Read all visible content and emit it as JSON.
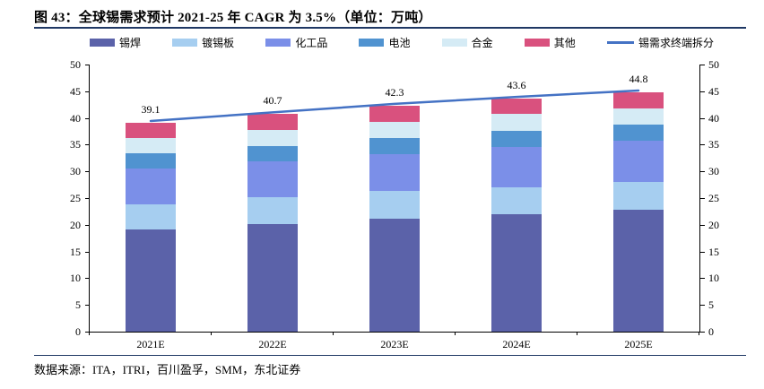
{
  "title": "图 43：全球锡需求预计 2021-25 年 CAGR 为 3.5%（单位：万吨）",
  "source": "数据来源：ITA，ITRI，百川盈孚，SMM，东北证券",
  "colors": {
    "rule": "#1f3864",
    "axis": "#000000",
    "line": "#4472c4"
  },
  "chart_data": {
    "type": "bar",
    "subtype": "stacked-bars-with-line-overlay",
    "title": "全球锡需求预计 2021-25 年 CAGR 为 3.5%（单位：万吨）",
    "categories": [
      "2021E",
      "2022E",
      "2023E",
      "2024E",
      "2025E"
    ],
    "series": [
      {
        "name": "锡焊",
        "color": "#5b62a9",
        "values": [
          19.2,
          20.2,
          21.1,
          22.0,
          22.9
        ]
      },
      {
        "name": "镀锡板",
        "color": "#a6cef0",
        "values": [
          4.7,
          5.0,
          5.2,
          5.0,
          5.1
        ]
      },
      {
        "name": "化工品",
        "color": "#7b8fe8",
        "values": [
          6.7,
          6.6,
          7.0,
          7.6,
          7.7
        ]
      },
      {
        "name": "电池",
        "color": "#5093d0",
        "values": [
          2.8,
          3.0,
          2.9,
          3.0,
          3.0
        ]
      },
      {
        "name": "合金",
        "color": "#d5ebf5",
        "values": [
          2.8,
          3.0,
          3.1,
          3.1,
          3.1
        ]
      },
      {
        "name": "其他",
        "color": "#d9517e",
        "values": [
          2.9,
          2.9,
          3.0,
          2.9,
          3.0
        ]
      }
    ],
    "line_series": {
      "name": "锡需求终端拆分",
      "color": "#4472c4",
      "values": [
        39.1,
        40.7,
        42.3,
        43.6,
        44.8
      ],
      "labels": [
        "39.1",
        "40.7",
        "42.3",
        "43.6",
        "44.8"
      ]
    },
    "ylim": [
      0,
      50
    ],
    "ytick_step": 5,
    "dual_y_axis": true,
    "grid": false,
    "legend_position": "top",
    "xlabel": "",
    "ylabel": ""
  }
}
